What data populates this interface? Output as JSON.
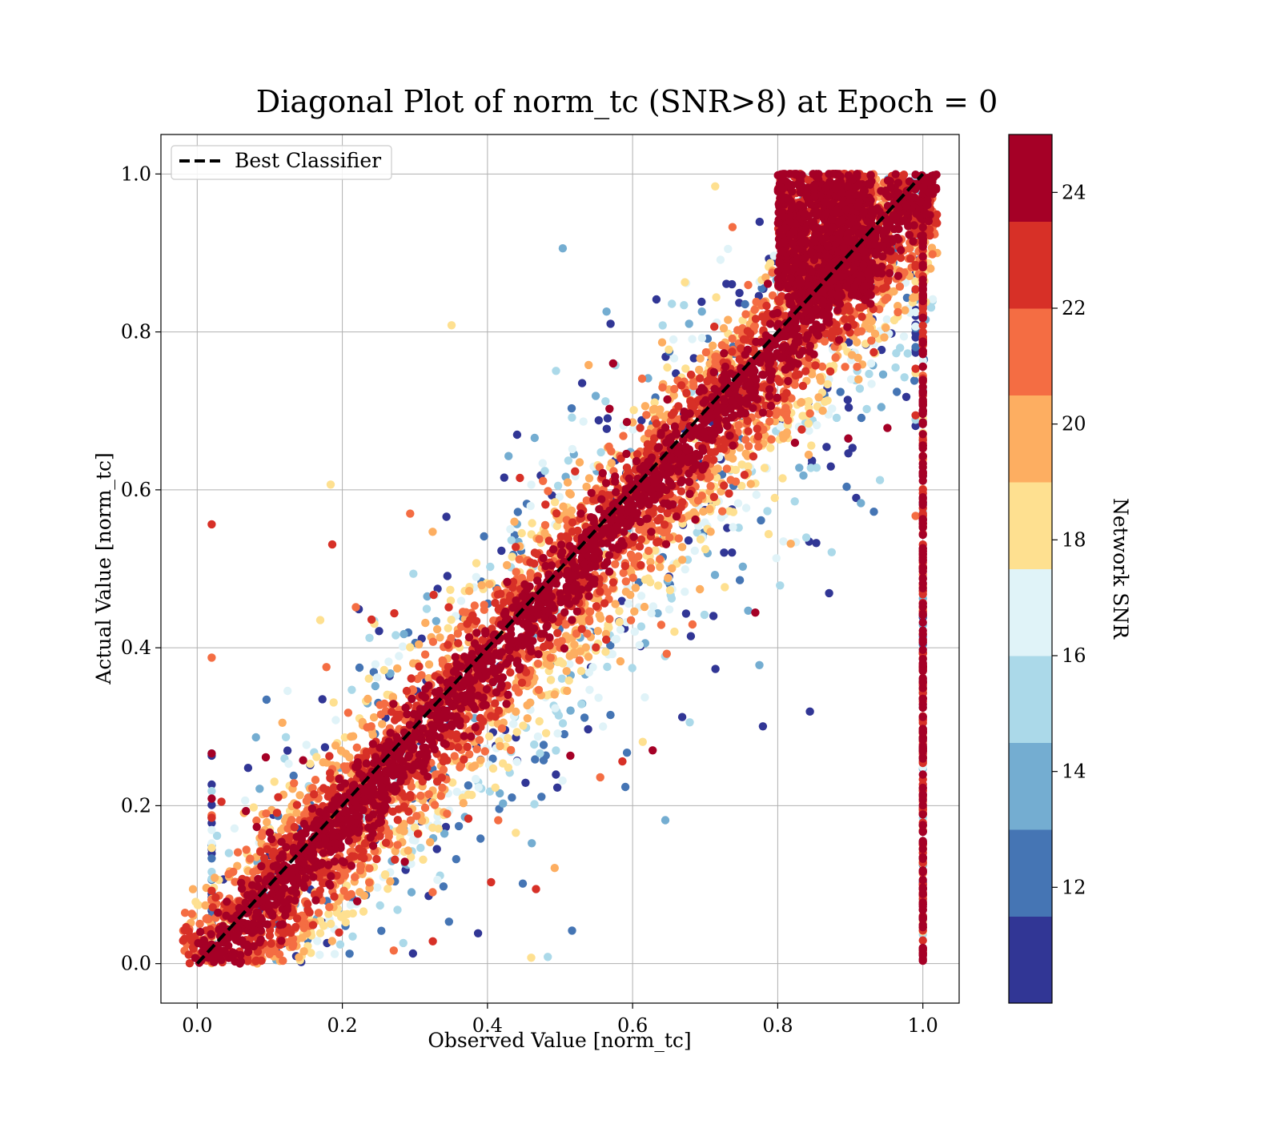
{
  "chart_data": {
    "type": "scatter",
    "title": "Diagonal Plot of norm_tc (SNR>8) at Epoch = 0",
    "xlabel": "Observed Value [norm_tc]",
    "ylabel": "Actual Value [norm_tc]",
    "xlim": [
      -0.05,
      1.05
    ],
    "ylim": [
      -0.05,
      1.05
    ],
    "xticks": [
      "0.0",
      "0.2",
      "0.4",
      "0.6",
      "0.8",
      "1.0"
    ],
    "yticks": [
      "0.0",
      "0.2",
      "0.4",
      "0.6",
      "0.8",
      "1.0"
    ],
    "grid": true,
    "legend": {
      "placement": "upper-left",
      "entries": [
        {
          "label": "Best Classifier",
          "style": "dashed-black-line"
        }
      ]
    },
    "reference_line": {
      "label": "Best Classifier",
      "from": [
        0,
        0
      ],
      "to": [
        1,
        1
      ],
      "color": "#000000"
    },
    "colorbar": {
      "label": "Network SNR",
      "min": 10,
      "max": 25,
      "ticks": [
        "12",
        "14",
        "16",
        "18",
        "20",
        "22",
        "24"
      ],
      "colors": [
        "#313695",
        "#4575b4",
        "#74add1",
        "#abd9e9",
        "#e0f3f8",
        "#fee090",
        "#fdae61",
        "#f46d43",
        "#d73027",
        "#a50026"
      ]
    },
    "point_distribution": {
      "description_of_visual": "dense band along the diagonal y = x with high-SNR points concentrated near the diagonal and low-SNR points spread further away; a vertical column of points at x = 1.0",
      "approx_point_count": 9000,
      "core_spread": 0.06,
      "outer_spread": 0.2,
      "dense_cluster": {
        "x_range": [
          0.8,
          0.93
        ],
        "y_range": [
          0.85,
          1.0
        ]
      },
      "vertical_column_x": 1.0
    }
  }
}
